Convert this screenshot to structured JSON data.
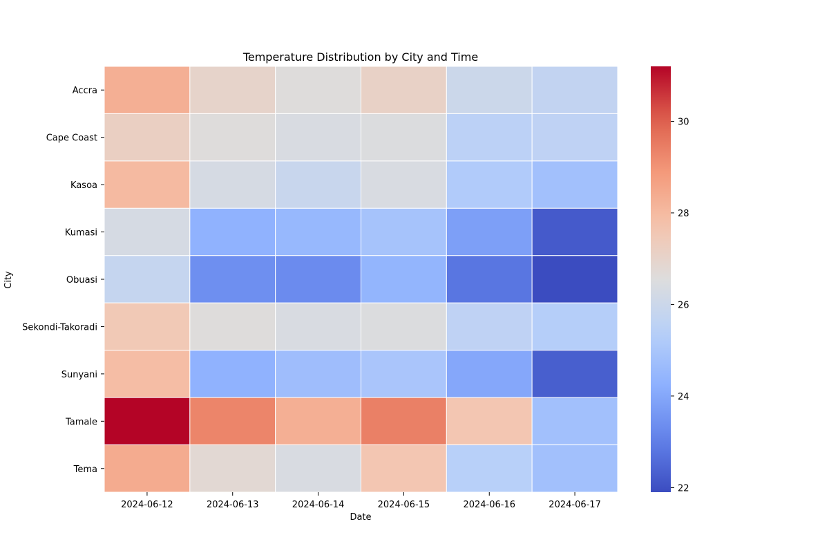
{
  "chart_data": {
    "type": "heatmap",
    "title": "Temperature Distribution by City and Time",
    "xlabel": "Date",
    "ylabel": "City",
    "x": [
      "2024-06-12",
      "2024-06-13",
      "2024-06-14",
      "2024-06-15",
      "2024-06-16",
      "2024-06-17"
    ],
    "y": [
      "Accra",
      "Cape Coast",
      "Kasoa",
      "Kumasi",
      "Obuasi",
      "Sekondi-Takoradi",
      "Sunyani",
      "Tamale",
      "Tema"
    ],
    "values": [
      [
        28.3,
        27.0,
        26.6,
        27.1,
        26.0,
        25.7
      ],
      [
        27.2,
        26.6,
        26.4,
        26.5,
        25.5,
        25.6
      ],
      [
        28.0,
        26.3,
        25.9,
        26.4,
        25.2,
        24.8
      ],
      [
        26.3,
        24.3,
        24.5,
        24.9,
        23.8,
        22.2
      ],
      [
        25.8,
        23.4,
        23.3,
        24.4,
        22.8,
        21.9
      ],
      [
        27.5,
        26.6,
        26.4,
        26.5,
        25.6,
        25.3
      ],
      [
        27.9,
        24.3,
        24.7,
        25.0,
        24.0,
        22.3
      ],
      [
        31.2,
        29.3,
        28.3,
        29.4,
        27.6,
        24.8
      ],
      [
        28.4,
        26.8,
        26.4,
        27.6,
        25.4,
        24.8
      ]
    ],
    "colormap": "coolwarm",
    "vmin": 21.9,
    "vmax": 31.2,
    "colorbar": {
      "ticks": [
        22,
        24,
        26,
        28,
        30
      ],
      "tick_labels": [
        "22",
        "24",
        "26",
        "28",
        "30"
      ]
    },
    "grid": false,
    "cell_border_color": "#ffffff"
  }
}
